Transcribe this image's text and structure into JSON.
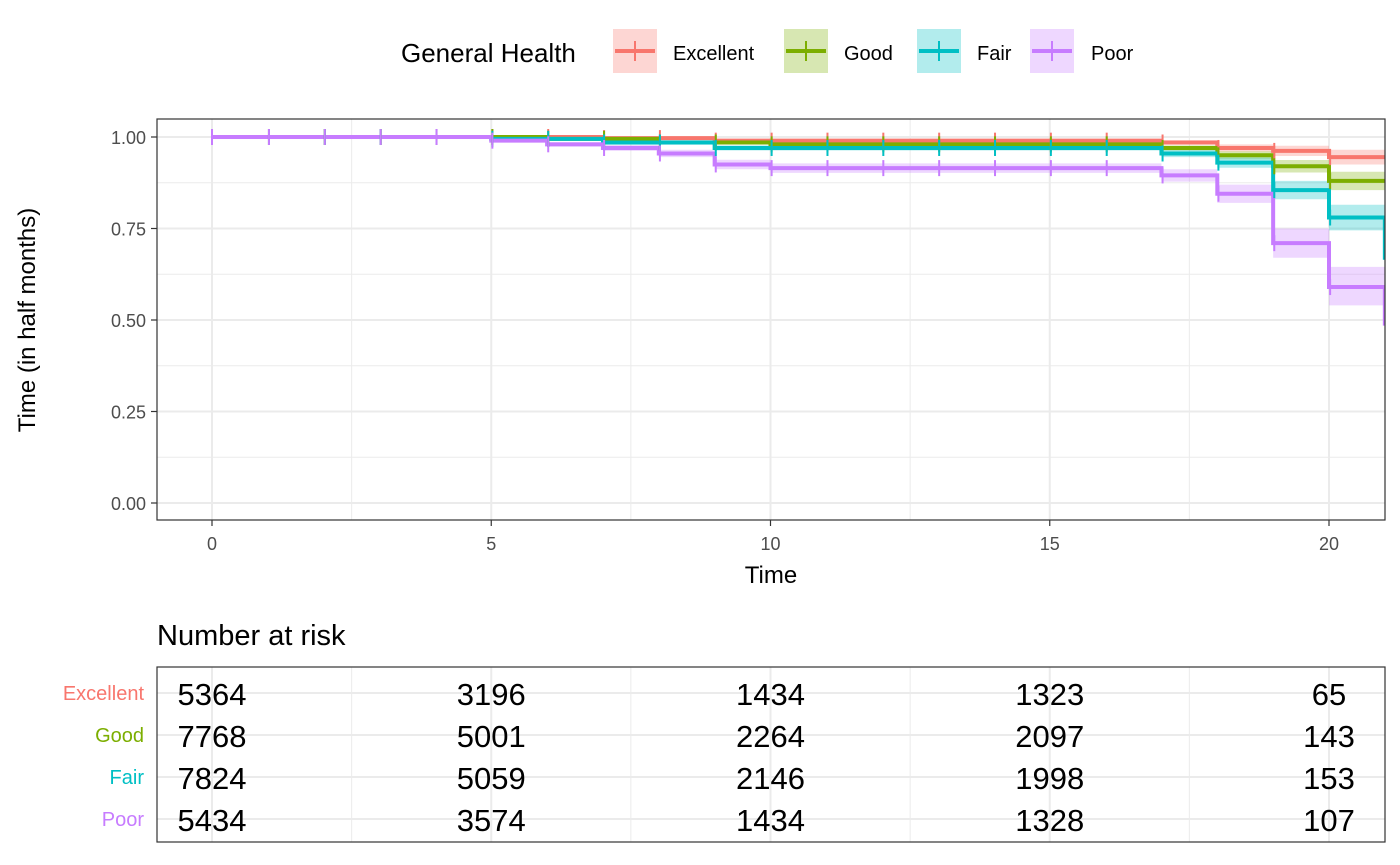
{
  "chart_data": [
    {
      "type": "line",
      "subtype": "kaplan-meier step curves with confidence bands and censor marks",
      "xlabel": "Time",
      "ylabel": "Time (in half months)",
      "xlim": [
        -1,
        21
      ],
      "ylim": [
        -0.05,
        1.05
      ],
      "x_ticks": [
        0,
        5,
        10,
        15,
        20
      ],
      "x_tick_labels": [
        "0",
        "5",
        "10",
        "15",
        "20"
      ],
      "y_ticks": [
        0,
        0.25,
        0.5,
        0.75,
        1
      ],
      "y_tick_labels": [
        "0.00",
        "0.25",
        "0.50",
        "0.75",
        "1.00"
      ],
      "grid": true,
      "legend": {
        "title": "General Health",
        "position": "top"
      },
      "series": [
        {
          "name": "Excellent",
          "color": "#F8766D",
          "steps": [
            [
              0,
              1.0
            ],
            [
              7,
              0.997
            ],
            [
              9,
              0.99
            ],
            [
              17,
              0.985
            ],
            [
              18,
              0.97
            ],
            [
              19,
              0.962
            ],
            [
              20,
              0.945
            ],
            [
              21,
              0.945
            ]
          ],
          "band": [
            [
              0,
              1,
              1
            ],
            [
              7,
              0.994,
              1
            ],
            [
              9,
              0.986,
              0.994
            ],
            [
              17,
              0.979,
              0.991
            ],
            [
              18,
              0.96,
              0.98
            ],
            [
              19,
              0.948,
              0.976
            ],
            [
              20,
              0.925,
              0.965
            ],
            [
              21,
              0.925,
              0.965
            ]
          ],
          "censor_x": [
            0,
            1,
            2,
            3,
            4,
            5,
            6,
            7,
            8,
            9,
            10,
            11,
            12,
            13,
            14,
            15,
            16,
            17,
            18,
            19,
            20
          ]
        },
        {
          "name": "Good",
          "color": "#7CAE00",
          "steps": [
            [
              0,
              1.0
            ],
            [
              6,
              0.995
            ],
            [
              8,
              0.985
            ],
            [
              10,
              0.98
            ],
            [
              17,
              0.97
            ],
            [
              18,
              0.95
            ],
            [
              19,
              0.92
            ],
            [
              20,
              0.88
            ],
            [
              21,
              0.88
            ]
          ],
          "band": [
            [
              0,
              1,
              1
            ],
            [
              6,
              0.992,
              0.998
            ],
            [
              8,
              0.98,
              0.99
            ],
            [
              10,
              0.975,
              0.985
            ],
            [
              17,
              0.963,
              0.977
            ],
            [
              18,
              0.939,
              0.961
            ],
            [
              19,
              0.903,
              0.937
            ],
            [
              20,
              0.855,
              0.905
            ],
            [
              21,
              0.855,
              0.905
            ]
          ],
          "censor_x": [
            0,
            1,
            2,
            3,
            4,
            5,
            6,
            7,
            8,
            9,
            10,
            11,
            12,
            13,
            14,
            15,
            16,
            17,
            18,
            19,
            20
          ]
        },
        {
          "name": "Fair",
          "color": "#00BFC4",
          "steps": [
            [
              0,
              1.0
            ],
            [
              5,
              0.995
            ],
            [
              7,
              0.985
            ],
            [
              9,
              0.97
            ],
            [
              17,
              0.955
            ],
            [
              18,
              0.93
            ],
            [
              19,
              0.855
            ],
            [
              20,
              0.78
            ],
            [
              21,
              0.67
            ]
          ],
          "band": [
            [
              0,
              1,
              1
            ],
            [
              5,
              0.991,
              0.999
            ],
            [
              7,
              0.979,
              0.991
            ],
            [
              9,
              0.963,
              0.977
            ],
            [
              17,
              0.945,
              0.965
            ],
            [
              18,
              0.916,
              0.944
            ],
            [
              19,
              0.83,
              0.88
            ],
            [
              20,
              0.745,
              0.815
            ],
            [
              21,
              0.63,
              0.71
            ]
          ],
          "censor_x": [
            0,
            1,
            2,
            3,
            4,
            5,
            6,
            7,
            8,
            9,
            10,
            11,
            12,
            13,
            14,
            15,
            16,
            17,
            18,
            19,
            20,
            21
          ]
        },
        {
          "name": "Poor",
          "color": "#C77CFF",
          "steps": [
            [
              0,
              1.0
            ],
            [
              5,
              0.99
            ],
            [
              6,
              0.98
            ],
            [
              7,
              0.97
            ],
            [
              8,
              0.955
            ],
            [
              9,
              0.925
            ],
            [
              10,
              0.915
            ],
            [
              17,
              0.895
            ],
            [
              18,
              0.845
            ],
            [
              19,
              0.71
            ],
            [
              20,
              0.59
            ],
            [
              21,
              0.49
            ]
          ],
          "band": [
            [
              0,
              1,
              1
            ],
            [
              5,
              0.985,
              0.995
            ],
            [
              6,
              0.974,
              0.986
            ],
            [
              7,
              0.962,
              0.978
            ],
            [
              8,
              0.945,
              0.965
            ],
            [
              9,
              0.912,
              0.938
            ],
            [
              10,
              0.902,
              0.928
            ],
            [
              17,
              0.878,
              0.912
            ],
            [
              18,
              0.82,
              0.87
            ],
            [
              19,
              0.67,
              0.75
            ],
            [
              20,
              0.54,
              0.645
            ],
            [
              21,
              0.44,
              0.54
            ]
          ],
          "censor_x": [
            0,
            1,
            2,
            3,
            4,
            5,
            6,
            7,
            8,
            9,
            10,
            11,
            12,
            13,
            14,
            15,
            16,
            17,
            18,
            19,
            20,
            21
          ]
        }
      ]
    },
    {
      "type": "table",
      "title": "Number at risk",
      "x_positions": [
        0,
        5,
        10,
        15,
        20
      ],
      "rows": [
        {
          "label": "Excellent",
          "color": "#F8766D",
          "values": [
            "5364",
            "3196",
            "1434",
            "1323",
            "65"
          ]
        },
        {
          "label": "Good",
          "color": "#7CAE00",
          "values": [
            "7768",
            "5001",
            "2264",
            "2097",
            "143"
          ]
        },
        {
          "label": "Fair",
          "color": "#00BFC4",
          "values": [
            "7824",
            "5059",
            "2146",
            "1998",
            "153"
          ]
        },
        {
          "label": "Poor",
          "color": "#C77CFF",
          "values": [
            "5434",
            "3574",
            "1434",
            "1328",
            "107"
          ]
        }
      ]
    }
  ]
}
